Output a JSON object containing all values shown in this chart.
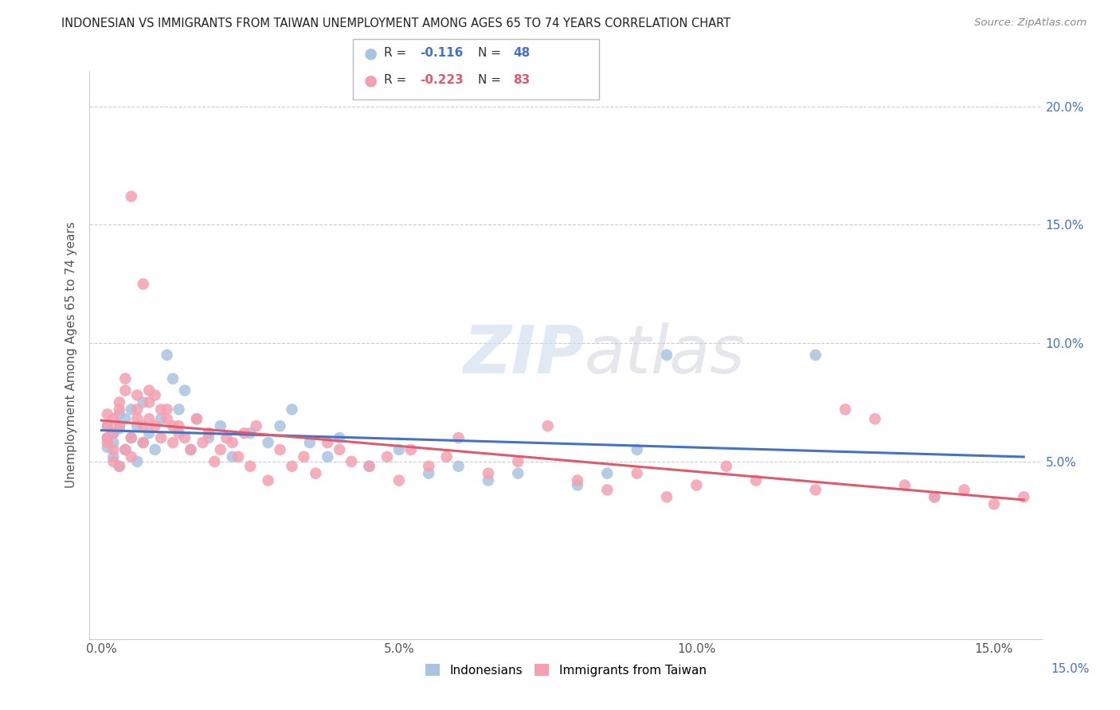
{
  "title": "INDONESIAN VS IMMIGRANTS FROM TAIWAN UNEMPLOYMENT AMONG AGES 65 TO 74 YEARS CORRELATION CHART",
  "source": "Source: ZipAtlas.com",
  "ylabel": "Unemployment Among Ages 65 to 74 years",
  "xlabel_ticks": [
    "0.0%",
    "5.0%",
    "10.0%",
    "15.0%"
  ],
  "xlabel_vals": [
    0.0,
    0.05,
    0.1,
    0.15
  ],
  "ylabel_ticks": [
    "5.0%",
    "10.0%",
    "15.0%",
    "20.0%"
  ],
  "ylabel_vals": [
    0.05,
    0.1,
    0.15,
    0.2
  ],
  "xlim": [
    -0.002,
    0.158
  ],
  "ylim": [
    -0.025,
    0.215
  ],
  "legend_label1": "Indonesians",
  "legend_label2": "Immigrants from Taiwan",
  "R1": -0.116,
  "N1": 48,
  "R2": -0.223,
  "N2": 83,
  "color1": "#a8c4e0",
  "color2": "#f4a0b0",
  "line_color1": "#4472c4",
  "line_color2": "#e05a6e",
  "watermark_zip": "ZIP",
  "watermark_atlas": "atlas",
  "indonesians_x": [
    0.001,
    0.001,
    0.001,
    0.002,
    0.002,
    0.002,
    0.003,
    0.003,
    0.003,
    0.004,
    0.004,
    0.005,
    0.005,
    0.006,
    0.006,
    0.007,
    0.007,
    0.008,
    0.009,
    0.01,
    0.011,
    0.012,
    0.013,
    0.014,
    0.015,
    0.016,
    0.018,
    0.02,
    0.022,
    0.025,
    0.028,
    0.03,
    0.032,
    0.035,
    0.038,
    0.04,
    0.045,
    0.05,
    0.055,
    0.06,
    0.065,
    0.07,
    0.08,
    0.085,
    0.09,
    0.095,
    0.12,
    0.14
  ],
  "indonesians_y": [
    0.056,
    0.06,
    0.065,
    0.052,
    0.058,
    0.062,
    0.048,
    0.064,
    0.07,
    0.055,
    0.068,
    0.06,
    0.072,
    0.05,
    0.065,
    0.058,
    0.075,
    0.062,
    0.055,
    0.068,
    0.095,
    0.085,
    0.072,
    0.08,
    0.055,
    0.068,
    0.06,
    0.065,
    0.052,
    0.062,
    0.058,
    0.065,
    0.072,
    0.058,
    0.052,
    0.06,
    0.048,
    0.055,
    0.045,
    0.048,
    0.042,
    0.045,
    0.04,
    0.045,
    0.055,
    0.095,
    0.095,
    0.035
  ],
  "taiwan_x": [
    0.001,
    0.001,
    0.001,
    0.001,
    0.002,
    0.002,
    0.002,
    0.002,
    0.003,
    0.003,
    0.003,
    0.003,
    0.004,
    0.004,
    0.004,
    0.005,
    0.005,
    0.005,
    0.006,
    0.006,
    0.006,
    0.007,
    0.007,
    0.007,
    0.008,
    0.008,
    0.008,
    0.009,
    0.009,
    0.01,
    0.01,
    0.011,
    0.011,
    0.012,
    0.012,
    0.013,
    0.013,
    0.014,
    0.015,
    0.016,
    0.017,
    0.018,
    0.019,
    0.02,
    0.021,
    0.022,
    0.023,
    0.024,
    0.025,
    0.026,
    0.028,
    0.03,
    0.032,
    0.034,
    0.036,
    0.038,
    0.04,
    0.042,
    0.045,
    0.048,
    0.05,
    0.052,
    0.055,
    0.058,
    0.06,
    0.065,
    0.07,
    0.075,
    0.08,
    0.085,
    0.09,
    0.095,
    0.1,
    0.105,
    0.11,
    0.12,
    0.125,
    0.13,
    0.135,
    0.14,
    0.145,
    0.15,
    0.155
  ],
  "taiwan_y": [
    0.06,
    0.058,
    0.065,
    0.07,
    0.055,
    0.062,
    0.05,
    0.068,
    0.075,
    0.065,
    0.072,
    0.048,
    0.08,
    0.085,
    0.055,
    0.06,
    0.162,
    0.052,
    0.068,
    0.078,
    0.072,
    0.065,
    0.125,
    0.058,
    0.075,
    0.08,
    0.068,
    0.078,
    0.065,
    0.072,
    0.06,
    0.068,
    0.072,
    0.065,
    0.058,
    0.062,
    0.065,
    0.06,
    0.055,
    0.068,
    0.058,
    0.062,
    0.05,
    0.055,
    0.06,
    0.058,
    0.052,
    0.062,
    0.048,
    0.065,
    0.042,
    0.055,
    0.048,
    0.052,
    0.045,
    0.058,
    0.055,
    0.05,
    0.048,
    0.052,
    0.042,
    0.055,
    0.048,
    0.052,
    0.06,
    0.045,
    0.05,
    0.065,
    0.042,
    0.038,
    0.045,
    0.035,
    0.04,
    0.048,
    0.042,
    0.038,
    0.072,
    0.068,
    0.04,
    0.035,
    0.038,
    0.032,
    0.035
  ]
}
